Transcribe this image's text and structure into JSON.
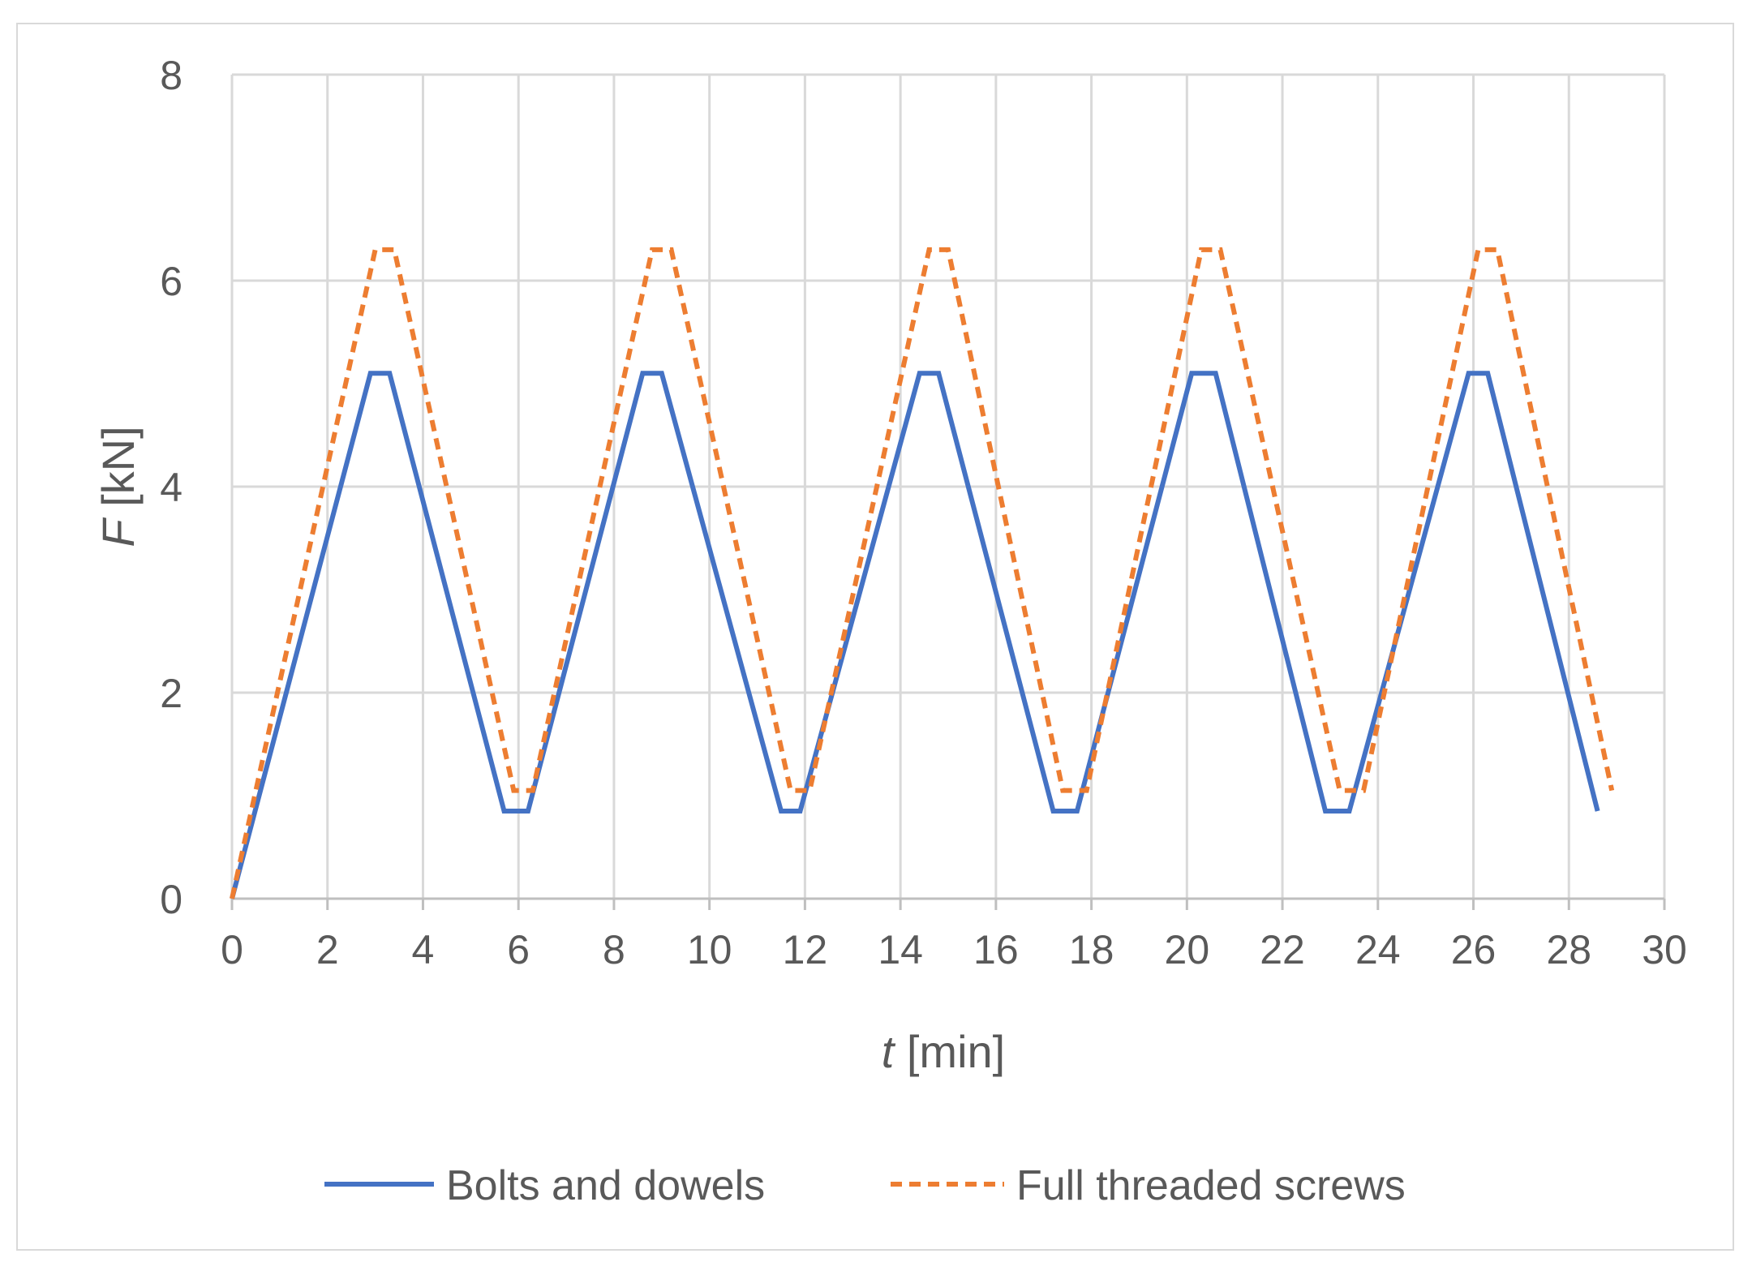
{
  "chart_data": {
    "type": "line",
    "title": "",
    "xlabel_var": "t",
    "xlabel_unit": " [min]",
    "ylabel_var": "F",
    "ylabel_unit": " [kN]",
    "xlim": [
      0,
      30
    ],
    "ylim": [
      0,
      8
    ],
    "x_ticks": [
      "0",
      "2",
      "4",
      "6",
      "8",
      "10",
      "12",
      "14",
      "16",
      "18",
      "20",
      "22",
      "24",
      "26",
      "28",
      "30"
    ],
    "y_ticks": [
      "0",
      "2",
      "4",
      "6",
      "8"
    ],
    "grid": true,
    "legend_position": "bottom",
    "series": [
      {
        "name": "Bolts and dowels",
        "color": "#4472c4",
        "style": "solid",
        "points": [
          [
            0,
            0
          ],
          [
            2.9,
            5.1
          ],
          [
            3.3,
            5.1
          ],
          [
            5.7,
            0.85
          ],
          [
            6.2,
            0.85
          ],
          [
            8.6,
            5.1
          ],
          [
            9.0,
            5.1
          ],
          [
            11.5,
            0.85
          ],
          [
            11.9,
            0.85
          ],
          [
            14.4,
            5.1
          ],
          [
            14.8,
            5.1
          ],
          [
            17.2,
            0.85
          ],
          [
            17.7,
            0.85
          ],
          [
            20.1,
            5.1
          ],
          [
            20.6,
            5.1
          ],
          [
            22.9,
            0.85
          ],
          [
            23.4,
            0.85
          ],
          [
            25.9,
            5.1
          ],
          [
            26.3,
            5.1
          ],
          [
            28.6,
            0.85
          ]
        ]
      },
      {
        "name": "Full threaded screws",
        "color": "#ed7d31",
        "style": "dashed",
        "points": [
          [
            0,
            0
          ],
          [
            3.0,
            6.3
          ],
          [
            3.4,
            6.3
          ],
          [
            5.9,
            1.05
          ],
          [
            6.3,
            1.05
          ],
          [
            8.8,
            6.3
          ],
          [
            9.2,
            6.3
          ],
          [
            11.7,
            1.05
          ],
          [
            12.1,
            1.05
          ],
          [
            14.6,
            6.3
          ],
          [
            15.0,
            6.3
          ],
          [
            17.4,
            1.05
          ],
          [
            17.9,
            1.05
          ],
          [
            20.3,
            6.3
          ],
          [
            20.7,
            6.3
          ],
          [
            23.2,
            1.05
          ],
          [
            23.7,
            1.05
          ],
          [
            26.1,
            6.3
          ],
          [
            26.5,
            6.3
          ],
          [
            28.9,
            1.05
          ]
        ]
      }
    ]
  }
}
